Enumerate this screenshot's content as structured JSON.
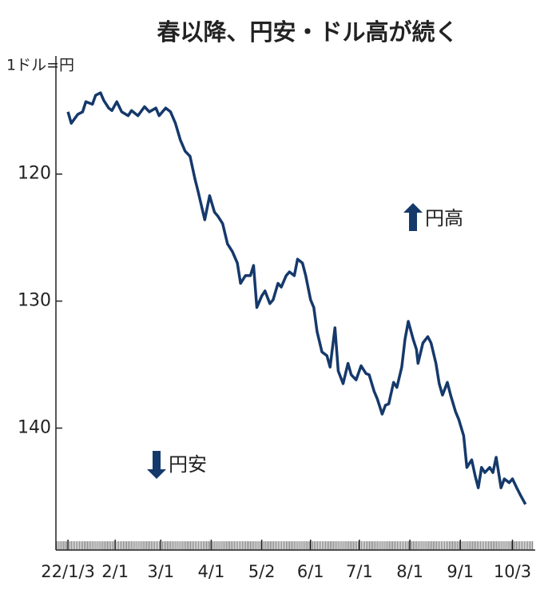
{
  "chart_data": {
    "type": "line",
    "title": "春以降、円安・ドル高が続く",
    "y_label": "1ドル=円",
    "annotations": [
      "円高",
      "円安"
    ],
    "y_reversed": true,
    "x": [
      0,
      2,
      6,
      9,
      11,
      15,
      17,
      20,
      22,
      25,
      27,
      30,
      33,
      37,
      39,
      43,
      47,
      50,
      54,
      56,
      60,
      63,
      66,
      69,
      72,
      75,
      78,
      80,
      82,
      84,
      87,
      90,
      92,
      95,
      98,
      101,
      104,
      106,
      109,
      112,
      114,
      116,
      119,
      121,
      124,
      126,
      129,
      131,
      134,
      136,
      139,
      141,
      144,
      146,
      149,
      151,
      153,
      156,
      159,
      161,
      164,
      166,
      169,
      172,
      174,
      177,
      180,
      183,
      185,
      188,
      190,
      193,
      195,
      197,
      200,
      202,
      205,
      207,
      209,
      212,
      214,
      215,
      218,
      221,
      223,
      226,
      228,
      230,
      233,
      235,
      238,
      240,
      243,
      245,
      248,
      250,
      252,
      254,
      256,
      259,
      261,
      263,
      266,
      268,
      271,
      273,
      276,
      278,
      281
    ],
    "series": [
      {
        "color": "#15396b",
        "values": [
          115.1,
          116.0,
          115.3,
          115.1,
          114.3,
          114.5,
          113.8,
          113.6,
          114.2,
          114.8,
          115.0,
          114.3,
          115.1,
          115.4,
          115.0,
          115.4,
          114.7,
          115.1,
          114.8,
          115.4,
          114.8,
          115.1,
          116.0,
          117.3,
          118.2,
          118.6,
          120.4,
          121.4,
          122.5,
          123.6,
          121.7,
          123.0,
          123.3,
          123.9,
          125.5,
          126.1,
          127.0,
          128.6,
          128.0,
          128.0,
          127.2,
          130.5,
          129.6,
          129.2,
          130.2,
          129.9,
          128.6,
          128.9,
          128.0,
          127.7,
          128.0,
          126.7,
          127.0,
          128.0,
          129.9,
          130.5,
          132.4,
          134.0,
          134.3,
          135.2,
          132.1,
          135.5,
          136.5,
          134.9,
          135.8,
          136.2,
          135.1,
          135.7,
          135.8,
          137.1,
          137.7,
          138.9,
          138.2,
          138.1,
          136.4,
          136.8,
          135.2,
          133.0,
          131.6,
          133.0,
          133.8,
          134.9,
          133.3,
          132.8,
          133.3,
          134.9,
          136.5,
          137.4,
          136.4,
          137.4,
          138.7,
          139.3,
          140.6,
          143.1,
          142.5,
          143.7,
          144.7,
          143.1,
          143.5,
          143.1,
          143.5,
          142.3,
          144.7,
          144.0,
          144.3,
          144.0,
          144.8,
          145.3,
          146.0
        ]
      }
    ],
    "xlim": [
      -7.4,
      286
    ],
    "xticks": [
      {
        "value": 0,
        "label": "22/1/3"
      },
      {
        "value": 29,
        "label": "2/1"
      },
      {
        "value": 57,
        "label": "3/1"
      },
      {
        "value": 88,
        "label": "4/1"
      },
      {
        "value": 119,
        "label": "5/2"
      },
      {
        "value": 149,
        "label": "6/1"
      },
      {
        "value": 179,
        "label": "7/1"
      },
      {
        "value": 210,
        "label": "8/1"
      },
      {
        "value": 241,
        "label": "9/1"
      },
      {
        "value": 273,
        "label": "10/3"
      }
    ],
    "ylim": [
      110.7,
      149.6
    ],
    "yticks": [
      120,
      130,
      140
    ],
    "grid": false
  }
}
